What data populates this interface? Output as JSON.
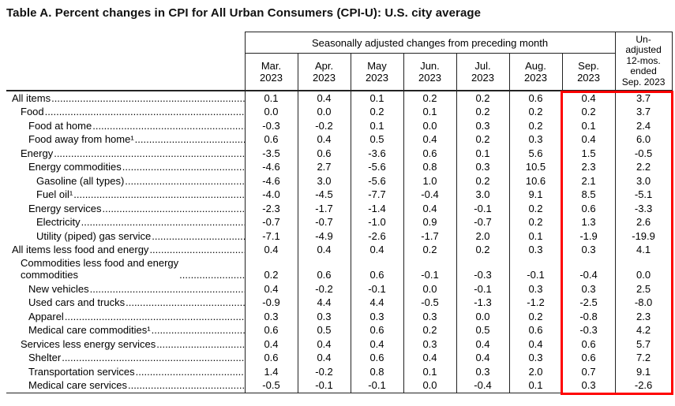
{
  "display": {
    "unadjusted_header": "Un-\nadjusted\n12-mos.\nended\nSep. 2023"
  },
  "highlight": {
    "color": "#ff0000",
    "highlighted_columns": [
      "Sep. 2023",
      "Un-adjusted 12-mos. ended Sep. 2023"
    ]
  },
  "chart_data": {
    "type": "table",
    "title": "Table A. Percent changes in CPI for All Urban Consumers (CPI-U): U.S. city average",
    "column_group_header": "Seasonally adjusted changes from preceding month",
    "columns": [
      "Mar. 2023",
      "Apr. 2023",
      "May 2023",
      "Jun. 2023",
      "Jul. 2023",
      "Aug. 2023",
      "Sep. 2023",
      "Un-adjusted 12-mos. ended Sep. 2023"
    ],
    "rows": [
      {
        "label": "All items",
        "indent": 0,
        "values": [
          "0.1",
          "0.4",
          "0.1",
          "0.2",
          "0.2",
          "0.6",
          "0.4",
          "3.7"
        ]
      },
      {
        "label": "Food",
        "indent": 1,
        "values": [
          "0.0",
          "0.0",
          "0.2",
          "0.1",
          "0.2",
          "0.2",
          "0.2",
          "3.7"
        ]
      },
      {
        "label": "Food at home",
        "indent": 2,
        "values": [
          "-0.3",
          "-0.2",
          "0.1",
          "0.0",
          "0.3",
          "0.2",
          "0.1",
          "2.4"
        ]
      },
      {
        "label": "Food away from home¹",
        "indent": 2,
        "values": [
          "0.6",
          "0.4",
          "0.5",
          "0.4",
          "0.2",
          "0.3",
          "0.4",
          "6.0"
        ]
      },
      {
        "label": "Energy",
        "indent": 1,
        "values": [
          "-3.5",
          "0.6",
          "-3.6",
          "0.6",
          "0.1",
          "5.6",
          "1.5",
          "-0.5"
        ]
      },
      {
        "label": "Energy commodities",
        "indent": 2,
        "values": [
          "-4.6",
          "2.7",
          "-5.6",
          "0.8",
          "0.3",
          "10.5",
          "2.3",
          "2.2"
        ]
      },
      {
        "label": "Gasoline (all types)",
        "indent": 3,
        "values": [
          "-4.6",
          "3.0",
          "-5.6",
          "1.0",
          "0.2",
          "10.6",
          "2.1",
          "3.0"
        ]
      },
      {
        "label": "Fuel oil¹",
        "indent": 3,
        "values": [
          "-4.0",
          "-4.5",
          "-7.7",
          "-0.4",
          "3.0",
          "9.1",
          "8.5",
          "-5.1"
        ]
      },
      {
        "label": "Energy services",
        "indent": 2,
        "values": [
          "-2.3",
          "-1.7",
          "-1.4",
          "0.4",
          "-0.1",
          "0.2",
          "0.6",
          "-3.3"
        ]
      },
      {
        "label": "Electricity",
        "indent": 3,
        "values": [
          "-0.7",
          "-0.7",
          "-1.0",
          "0.9",
          "-0.7",
          "0.2",
          "1.3",
          "2.6"
        ]
      },
      {
        "label": "Utility (piped) gas service",
        "indent": 3,
        "values": [
          "-7.1",
          "-4.9",
          "-2.6",
          "-1.7",
          "2.0",
          "0.1",
          "-1.9",
          "-19.9"
        ]
      },
      {
        "label": "All items less food and energy",
        "indent": 0,
        "values": [
          "0.4",
          "0.4",
          "0.4",
          "0.2",
          "0.2",
          "0.3",
          "0.3",
          "4.1"
        ]
      },
      {
        "label": "Commodities less food and energy commodities",
        "label_display": "Commodities less food and energy\ncommodities",
        "indent": 1,
        "values": [
          "0.2",
          "0.6",
          "0.6",
          "-0.1",
          "-0.3",
          "-0.1",
          "-0.4",
          "0.0"
        ]
      },
      {
        "label": "New vehicles",
        "indent": 2,
        "values": [
          "0.4",
          "-0.2",
          "-0.1",
          "0.0",
          "-0.1",
          "0.3",
          "0.3",
          "2.5"
        ]
      },
      {
        "label": "Used cars and trucks",
        "indent": 2,
        "values": [
          "-0.9",
          "4.4",
          "4.4",
          "-0.5",
          "-1.3",
          "-1.2",
          "-2.5",
          "-8.0"
        ]
      },
      {
        "label": "Apparel",
        "indent": 2,
        "values": [
          "0.3",
          "0.3",
          "0.3",
          "0.3",
          "0.0",
          "0.2",
          "-0.8",
          "2.3"
        ]
      },
      {
        "label": "Medical care commodities¹",
        "indent": 2,
        "values": [
          "0.6",
          "0.5",
          "0.6",
          "0.2",
          "0.5",
          "0.6",
          "-0.3",
          "4.2"
        ]
      },
      {
        "label": "Services less energy services",
        "indent": 1,
        "values": [
          "0.4",
          "0.4",
          "0.4",
          "0.3",
          "0.4",
          "0.4",
          "0.6",
          "5.7"
        ]
      },
      {
        "label": "Shelter",
        "indent": 2,
        "values": [
          "0.6",
          "0.4",
          "0.6",
          "0.4",
          "0.4",
          "0.3",
          "0.6",
          "7.2"
        ]
      },
      {
        "label": "Transportation services",
        "indent": 2,
        "values": [
          "1.4",
          "-0.2",
          "0.8",
          "0.1",
          "0.3",
          "2.0",
          "0.7",
          "9.1"
        ]
      },
      {
        "label": "Medical care services",
        "indent": 2,
        "values": [
          "-0.5",
          "-0.1",
          "-0.1",
          "0.0",
          "-0.4",
          "0.1",
          "0.3",
          "-2.6"
        ]
      }
    ]
  }
}
